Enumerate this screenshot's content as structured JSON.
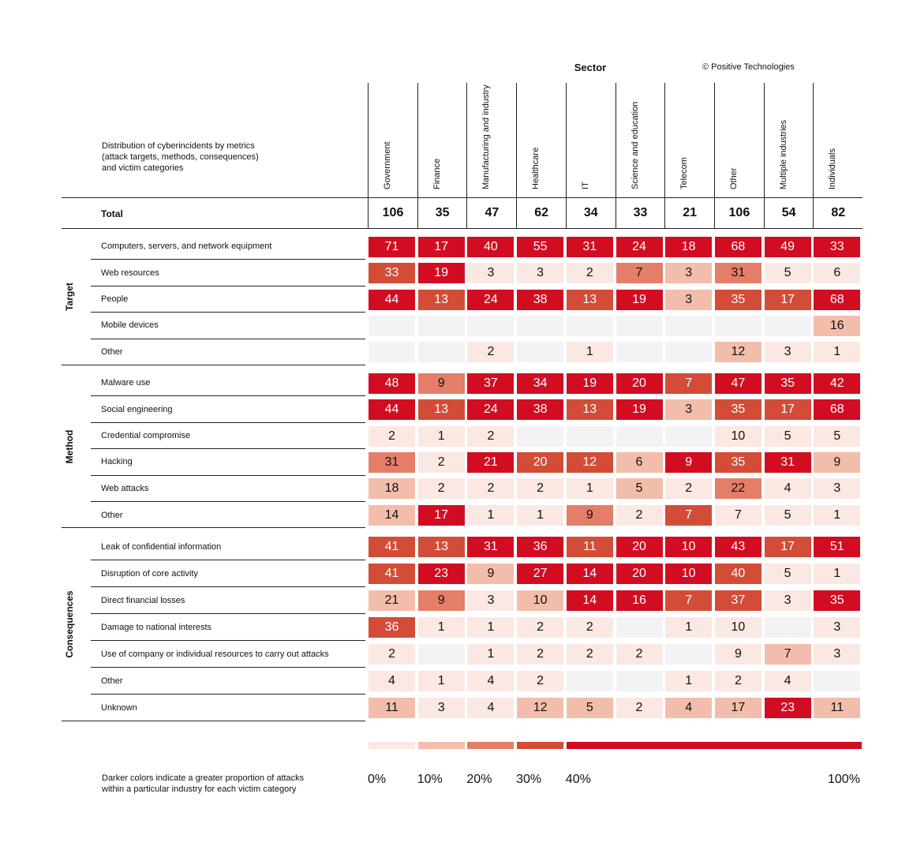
{
  "chart_data": {
    "type": "heatmap",
    "title": "Sector",
    "copyright": "© Positive Technologies",
    "description": [
      "Distribution of cyberincidents by metrics",
      "(attack targets, methods, consequences)",
      "and victim categories"
    ],
    "columns": [
      "Government",
      "Finance",
      "Manufacturing and industry",
      "Healthcare",
      "IT",
      "Science and education",
      "Telecom",
      "Other",
      "Multiple industries",
      "Individuals"
    ],
    "total_label": "Total",
    "totals": [
      106,
      35,
      47,
      62,
      34,
      33,
      21,
      106,
      54,
      82
    ],
    "groups": [
      {
        "name": "Target",
        "rows": [
          {
            "label": "Computers, servers, and network equipment",
            "values": [
              71,
              17,
              40,
              55,
              31,
              24,
              18,
              68,
              49,
              33
            ]
          },
          {
            "label": "Web resources",
            "values": [
              33,
              19,
              3,
              3,
              2,
              7,
              3,
              31,
              5,
              6
            ]
          },
          {
            "label": "People",
            "values": [
              44,
              13,
              24,
              38,
              13,
              19,
              3,
              35,
              17,
              68
            ]
          },
          {
            "label": "Mobile devices",
            "values": [
              null,
              null,
              null,
              null,
              null,
              null,
              null,
              null,
              null,
              16
            ]
          },
          {
            "label": "Other",
            "values": [
              null,
              null,
              2,
              null,
              1,
              null,
              null,
              12,
              3,
              1
            ]
          }
        ]
      },
      {
        "name": "Method",
        "rows": [
          {
            "label": "Malware use",
            "values": [
              48,
              9,
              37,
              34,
              19,
              20,
              7,
              47,
              35,
              42
            ]
          },
          {
            "label": "Social engineering",
            "values": [
              44,
              13,
              24,
              38,
              13,
              19,
              3,
              35,
              17,
              68
            ]
          },
          {
            "label": "Credential compromise",
            "values": [
              2,
              1,
              2,
              null,
              null,
              null,
              null,
              10,
              5,
              5
            ]
          },
          {
            "label": "Hacking",
            "values": [
              31,
              2,
              21,
              20,
              12,
              6,
              9,
              35,
              31,
              9
            ]
          },
          {
            "label": "Web attacks",
            "values": [
              18,
              2,
              2,
              2,
              1,
              5,
              2,
              22,
              4,
              3
            ]
          },
          {
            "label": "Other",
            "values": [
              14,
              17,
              1,
              1,
              9,
              2,
              7,
              7,
              5,
              1
            ]
          }
        ]
      },
      {
        "name": "Consequences",
        "rows": [
          {
            "label": "Leak of confidential information",
            "values": [
              41,
              13,
              31,
              36,
              11,
              20,
              10,
              43,
              17,
              51
            ]
          },
          {
            "label": "Disruption of core activity",
            "values": [
              41,
              23,
              9,
              27,
              14,
              20,
              10,
              40,
              5,
              1
            ]
          },
          {
            "label": "Direct financial losses",
            "values": [
              21,
              9,
              3,
              10,
              14,
              16,
              7,
              37,
              3,
              35
            ]
          },
          {
            "label": "Damage to national interests",
            "values": [
              36,
              1,
              1,
              2,
              2,
              null,
              1,
              10,
              null,
              3
            ]
          },
          {
            "label": "Use of company or individual resources to carry out attacks",
            "values": [
              2,
              null,
              1,
              2,
              2,
              2,
              null,
              9,
              7,
              3
            ]
          },
          {
            "label": "Other",
            "values": [
              4,
              1,
              4,
              2,
              null,
              null,
              1,
              2,
              4,
              null
            ]
          },
          {
            "label": "Unknown",
            "values": [
              11,
              3,
              4,
              12,
              5,
              2,
              4,
              17,
              23,
              11
            ]
          }
        ]
      }
    ],
    "legend": {
      "description": [
        "Darker colors indicate a greater proportion of attacks",
        "within a particular industry for each victim category"
      ],
      "ticks": [
        "0%",
        "10%",
        "20%",
        "30%",
        "40%",
        "100%"
      ],
      "thresholds": [
        10,
        20,
        30,
        40
      ],
      "colors": [
        "#fbe8e2",
        "#f3bdac",
        "#e57e69",
        "#d34c37",
        "#d20d22"
      ],
      "empty_color": "#f3f3f5"
    }
  }
}
